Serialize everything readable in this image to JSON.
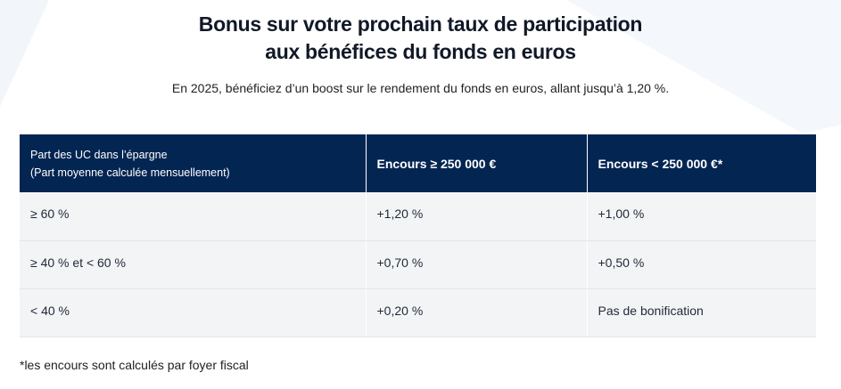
{
  "title_lines": [
    "Bonus sur votre prochain taux de participation",
    "aux bénéfices du fonds en euros"
  ],
  "subtitle": "En 2025, bénéficiez d’un boost sur le rendement du fonds en euros, allant jusqu’à 1,20 %.",
  "table": {
    "headers": {
      "col1_line1": "Part des UC dans l’épargne",
      "col1_line2": "(Part moyenne calculée mensuellement)",
      "col2": "Encours ≥ 250 000 €",
      "col3": "Encours < 250 000 €*"
    },
    "rows": [
      [
        "≥ 60 %",
        "+1,20 %",
        "+1,00 %"
      ],
      [
        "≥ 40 % et < 60 %",
        "+0,70 %",
        "+0,50 %"
      ],
      [
        "< 40 %",
        "+0,20 %",
        "Pas de bonification"
      ]
    ]
  },
  "footnote": "*les encours sont calculés par foyer fiscal",
  "colors": {
    "header_bg": "#032552",
    "row_bg": "#f3f4f6"
  }
}
